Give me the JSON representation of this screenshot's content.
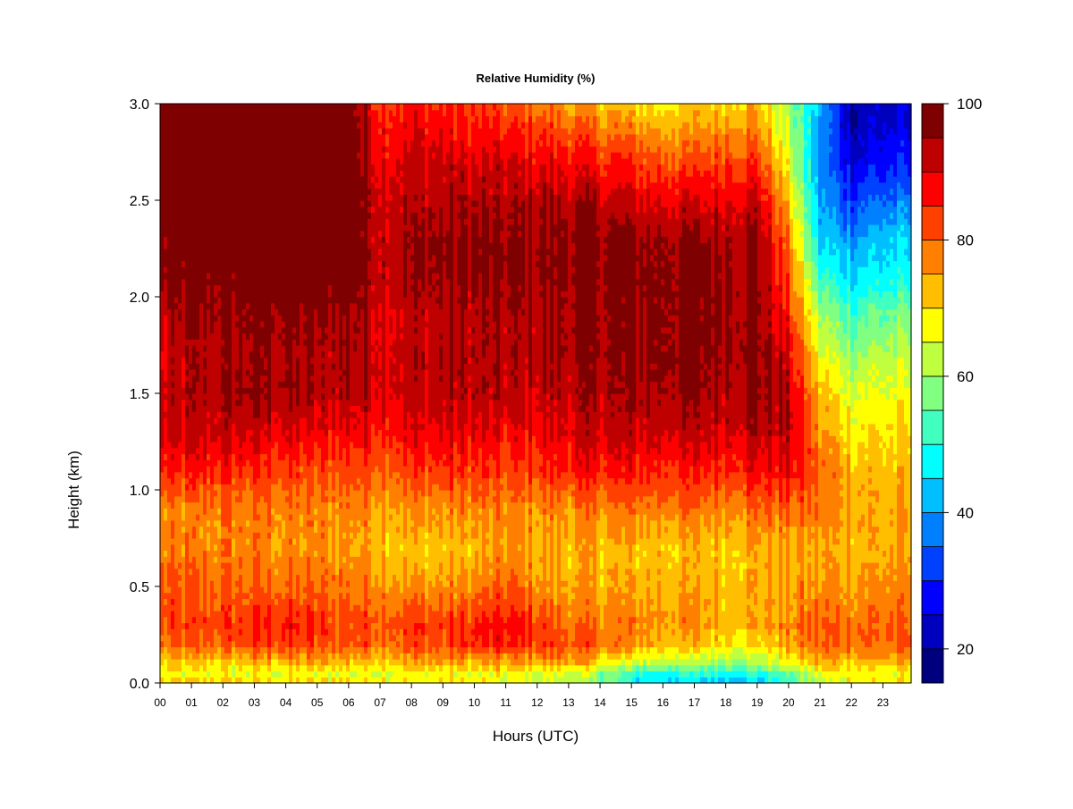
{
  "chart_data": {
    "type": "heatmap",
    "title": "Relative Humidity (%)",
    "xlabel": "Hours (UTC)",
    "ylabel": "Height (km)",
    "xlim": [
      0,
      23.9
    ],
    "ylim": [
      0.0,
      3.0
    ],
    "x_ticks": [
      "00",
      "01",
      "02",
      "03",
      "04",
      "05",
      "06",
      "07",
      "08",
      "09",
      "10",
      "11",
      "12",
      "13",
      "14",
      "15",
      "16",
      "17",
      "18",
      "19",
      "20",
      "21",
      "22",
      "23"
    ],
    "y_ticks": [
      "0.0",
      "0.5",
      "1.0",
      "1.5",
      "2.0",
      "2.5",
      "3.0"
    ],
    "colorbar": {
      "min": 15,
      "max": 100,
      "ticks": [
        "20",
        "40",
        "60",
        "80",
        "100"
      ],
      "levels": [
        15,
        20,
        25,
        30,
        35,
        40,
        45,
        50,
        55,
        60,
        65,
        70,
        75,
        80,
        85,
        90,
        95,
        100
      ],
      "colors": [
        "#00007F",
        "#0000BF",
        "#0000FF",
        "#0040FF",
        "#0080FF",
        "#00BFFF",
        "#00FFFF",
        "#40FFBF",
        "#80FF80",
        "#BFFF40",
        "#FFFF00",
        "#FFBF00",
        "#FF8000",
        "#FF4000",
        "#FF0000",
        "#BF0000",
        "#7F0000"
      ]
    },
    "heights_km": [
      0.0,
      0.05,
      0.1,
      0.2,
      0.3,
      0.5,
      0.7,
      0.9,
      1.1,
      1.3,
      1.5,
      1.7,
      1.9,
      2.1,
      2.3,
      2.5,
      2.7,
      2.9,
      3.0
    ],
    "hours": [
      0,
      1,
      2,
      3,
      4,
      5,
      6,
      7,
      8,
      9,
      10,
      11,
      12,
      13,
      14,
      15,
      16,
      17,
      18,
      19,
      20,
      21,
      22,
      23
    ],
    "rh_percent": [
      [
        72,
        66,
        70,
        78,
        82,
        80,
        77,
        76,
        84,
        90,
        91,
        89,
        92,
        96,
        97,
        100,
        100,
        100,
        100
      ],
      [
        72,
        66,
        70,
        80,
        82,
        80,
        77,
        77,
        85,
        91,
        93,
        93,
        95,
        97,
        99,
        100,
        100,
        100,
        100
      ],
      [
        72,
        66,
        70,
        80,
        84,
        80,
        77,
        78,
        86,
        92,
        94,
        93,
        96,
        98,
        100,
        100,
        100,
        100,
        100
      ],
      [
        70,
        66,
        72,
        82,
        85,
        80,
        77,
        78,
        84,
        91,
        96,
        96,
        97,
        99,
        100,
        100,
        100,
        100,
        100
      ],
      [
        70,
        66,
        72,
        84,
        86,
        80,
        76,
        77,
        83,
        90,
        95,
        95,
        97,
        100,
        100,
        100,
        100,
        100,
        100
      ],
      [
        70,
        66,
        72,
        82,
        84,
        79,
        76,
        77,
        82,
        88,
        93,
        93,
        95,
        100,
        100,
        100,
        100,
        100,
        100
      ],
      [
        70,
        66,
        72,
        82,
        82,
        79,
        76,
        78,
        83,
        89,
        94,
        95,
        96,
        100,
        100,
        100,
        100,
        100,
        100
      ],
      [
        70,
        66,
        72,
        80,
        83,
        78,
        74,
        76,
        82,
        88,
        92,
        92,
        92,
        93,
        93,
        92,
        90,
        87,
        85
      ],
      [
        70,
        66,
        73,
        82,
        84,
        76,
        72,
        76,
        82,
        88,
        92,
        92,
        92,
        95,
        95,
        93,
        91,
        88,
        86
      ],
      [
        70,
        66,
        74,
        82,
        83,
        76,
        72,
        76,
        84,
        89,
        93,
        94,
        93,
        96,
        96,
        94,
        91,
        87,
        85
      ],
      [
        68,
        66,
        72,
        84,
        85,
        77,
        72,
        77,
        84,
        89,
        93,
        94,
        93,
        96,
        96,
        94,
        90,
        85,
        83
      ],
      [
        66,
        66,
        74,
        85,
        87,
        80,
        76,
        76,
        82,
        87,
        92,
        93,
        93,
        96,
        96,
        93,
        90,
        84,
        80
      ],
      [
        64,
        66,
        74,
        84,
        84,
        77,
        74,
        77,
        84,
        89,
        92,
        94,
        94,
        96,
        96,
        94,
        89,
        83,
        78
      ],
      [
        62,
        66,
        74,
        82,
        80,
        75,
        73,
        77,
        86,
        90,
        93,
        95,
        95,
        97,
        97,
        94,
        88,
        80,
        75
      ],
      [
        58,
        58,
        70,
        80,
        78,
        74,
        73,
        78,
        86,
        92,
        94,
        96,
        96,
        97,
        97,
        93,
        86,
        78,
        72
      ],
      [
        48,
        50,
        62,
        76,
        78,
        74,
        72,
        78,
        86,
        92,
        94,
        96,
        96,
        97,
        96,
        91,
        84,
        76,
        70
      ],
      [
        46,
        50,
        62,
        74,
        76,
        74,
        72,
        78,
        86,
        92,
        95,
        97,
        97,
        97,
        96,
        90,
        82,
        74,
        68
      ],
      [
        44,
        50,
        60,
        72,
        76,
        74,
        72,
        78,
        86,
        92,
        95,
        97,
        97,
        97,
        96,
        90,
        82,
        74,
        70
      ],
      [
        44,
        50,
        60,
        70,
        74,
        74,
        72,
        78,
        86,
        92,
        95,
        97,
        97,
        96,
        96,
        90,
        84,
        76,
        72
      ],
      [
        42,
        50,
        60,
        70,
        74,
        74,
        74,
        80,
        88,
        94,
        96,
        97,
        96,
        96,
        96,
        92,
        84,
        76,
        72
      ],
      [
        50,
        55,
        66,
        74,
        78,
        75,
        74,
        80,
        88,
        92,
        93,
        90,
        86,
        82,
        78,
        72,
        66,
        62,
        60
      ],
      [
        60,
        66,
        72,
        80,
        80,
        76,
        74,
        78,
        80,
        76,
        72,
        66,
        60,
        52,
        44,
        40,
        38,
        40,
        42
      ],
      [
        68,
        68,
        72,
        80,
        80,
        76,
        74,
        76,
        74,
        70,
        66,
        60,
        54,
        46,
        40,
        32,
        26,
        22,
        22
      ],
      [
        70,
        66,
        72,
        80,
        80,
        76,
        74,
        74,
        72,
        70,
        66,
        62,
        56,
        48,
        44,
        36,
        28,
        24,
        24
      ]
    ]
  }
}
